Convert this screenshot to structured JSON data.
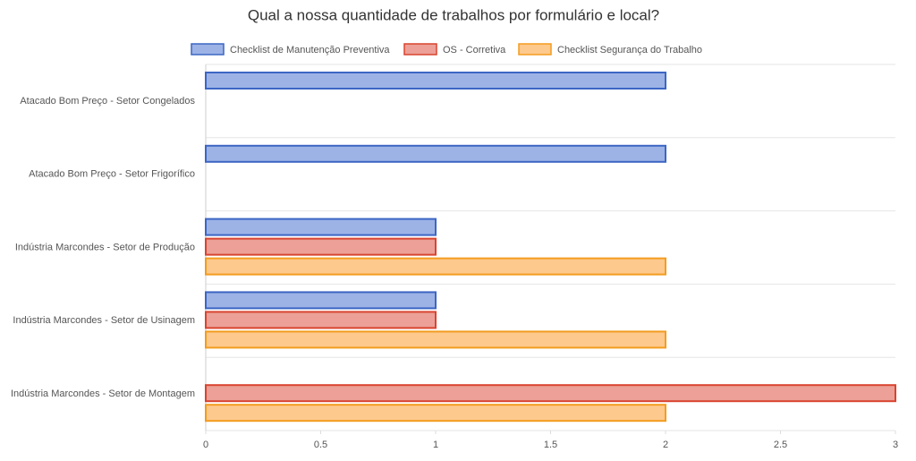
{
  "chart_data": {
    "type": "hbar",
    "title": "Qual a nossa quantidade de trabalhos por formulário e local?",
    "categories": [
      "Atacado Bom Preço - Setor Congelados",
      "Atacado Bom Preço - Setor Frigorífico",
      "Indústria Marcondes - Setor de Produção",
      "Indústria Marcondes - Setor de Usinagem",
      "Indústria Marcondes - Setor de Montagem"
    ],
    "series": [
      {
        "name": "Checklist de Manutenção Preventiva",
        "color": "#3c66c4",
        "fill": "#9db3e6",
        "values": [
          2,
          2,
          1,
          1,
          null
        ]
      },
      {
        "name": "OS - Corretiva",
        "color": "#d9442f",
        "fill": "#eca097",
        "values": [
          null,
          null,
          1,
          1,
          3
        ]
      },
      {
        "name": "Checklist Segurança do Trabalho",
        "color": "#f39c1f",
        "fill": "#fdc98d",
        "values": [
          null,
          null,
          2,
          2,
          2
        ]
      }
    ],
    "xlim": [
      0,
      3
    ],
    "xticks": [
      0,
      0.5,
      1,
      1.5,
      2,
      2.5,
      3
    ]
  }
}
